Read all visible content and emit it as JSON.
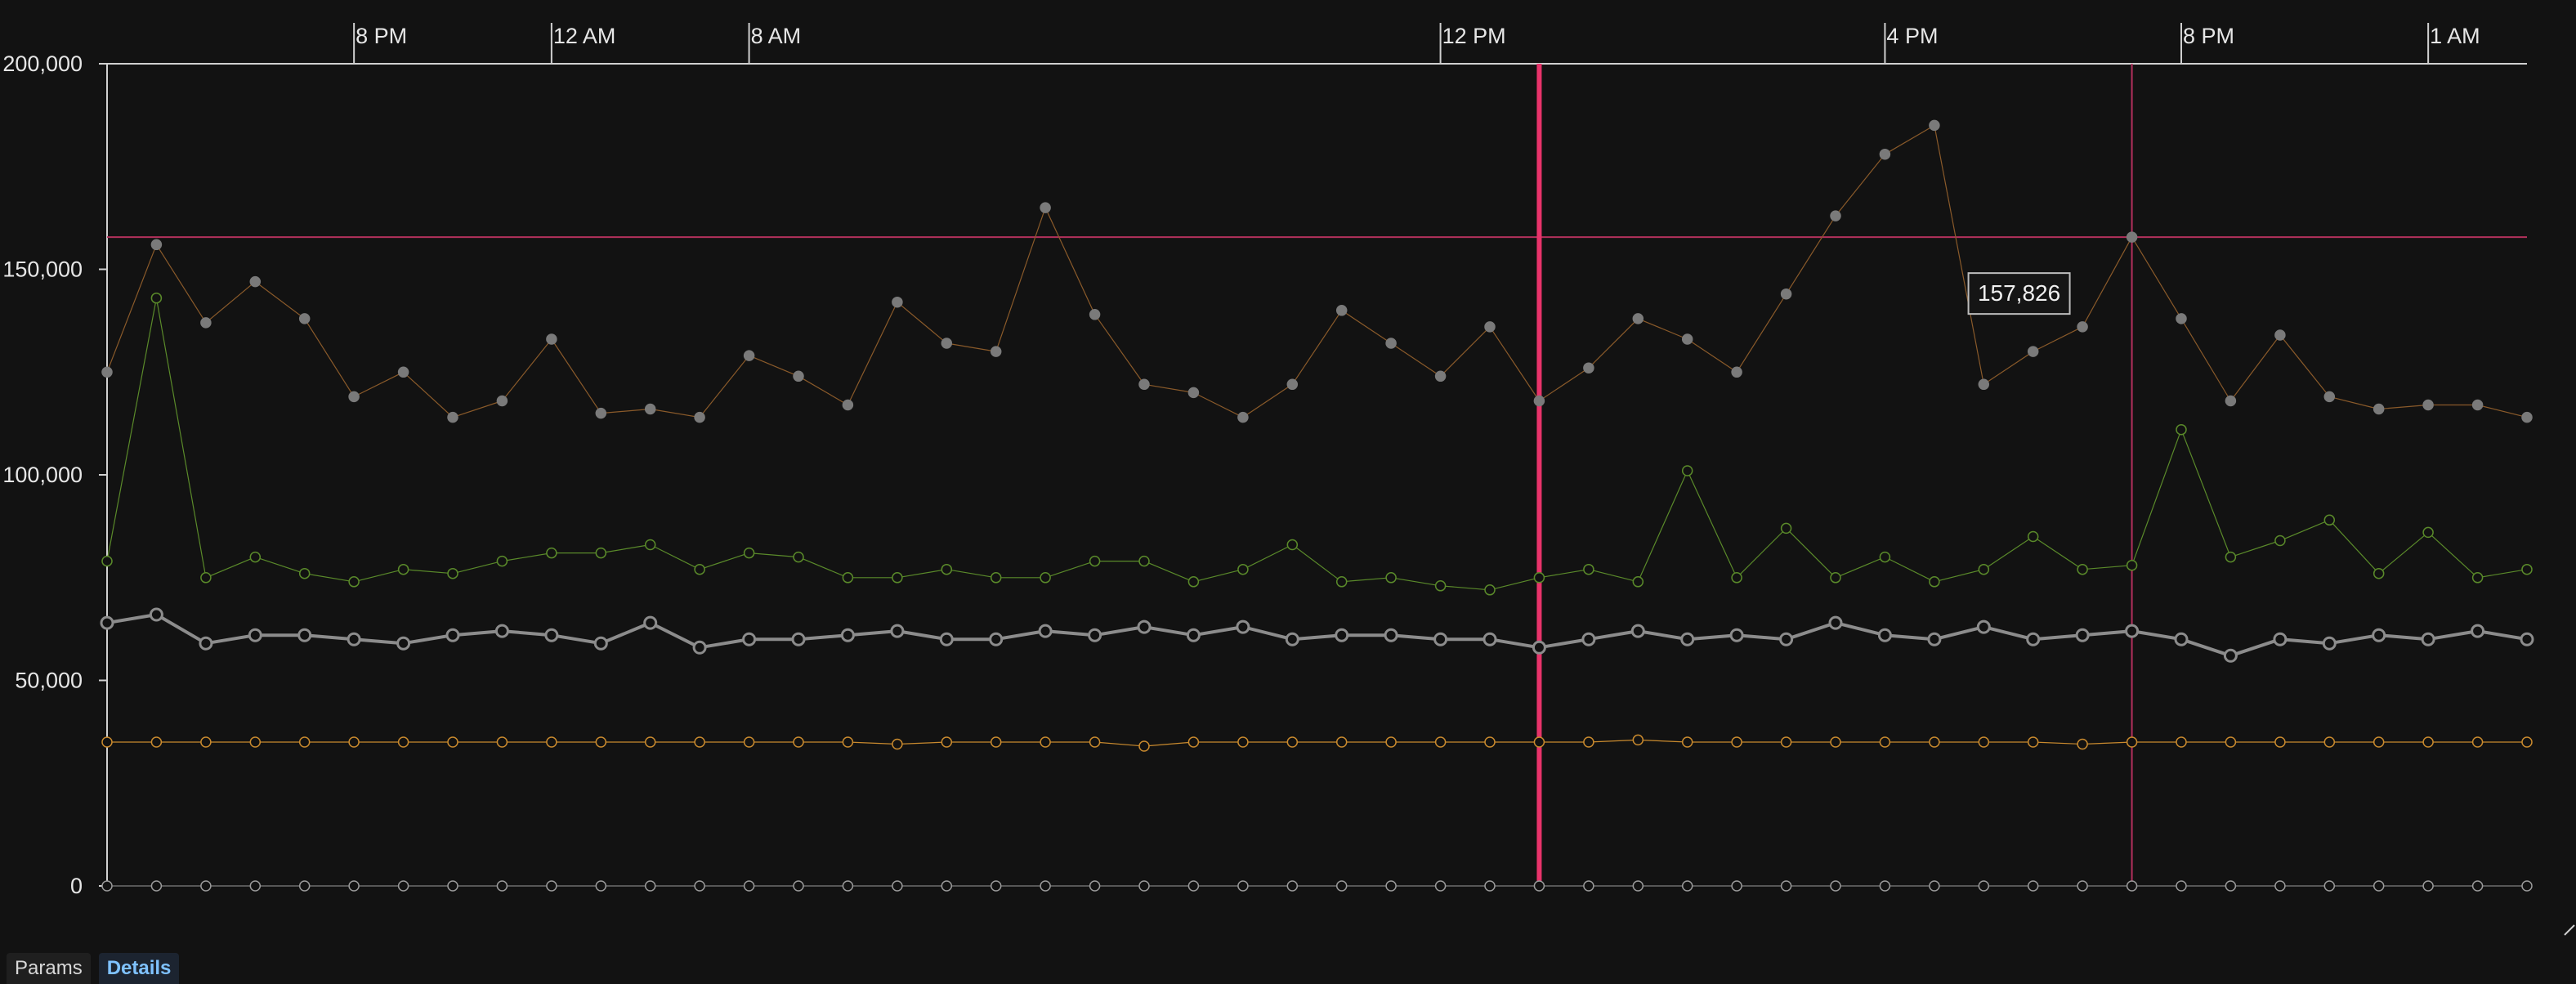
{
  "tabs": [
    {
      "label": "Params",
      "active": false
    },
    {
      "label": "Details",
      "active": true
    }
  ],
  "tooltip": {
    "text": "157,826"
  },
  "colors": {
    "background": "#121212",
    "axis": "#d0d0d0",
    "cursor": "#e8336a",
    "crosshair": "#b3305c",
    "series_top": "#8a5a2a",
    "series_green": "#5a8a2a",
    "series_grey": "#8c8c8c",
    "series_orange": "#c98a2e",
    "series_zero": "#9a9a9a"
  },
  "chart_data": {
    "type": "line",
    "x_tick_labels": [
      "8 PM",
      "12 AM",
      "8 AM",
      "12 PM",
      "4 PM",
      "8 PM",
      "1 AM"
    ],
    "y_tick_labels": [
      "200,000",
      "150,000",
      "100,000",
      "50,000",
      "0"
    ],
    "ylim": [
      0,
      200000
    ],
    "grid": false,
    "x_index_range": [
      0,
      49
    ],
    "x_tick_index": [
      5,
      9,
      13,
      27,
      36,
      42,
      47
    ],
    "cursor_index": 29,
    "crosshair_index": 41,
    "crosshair_value": 157826,
    "series": [
      {
        "key": "top",
        "color": "#8a5a2a",
        "dot": "#7a7a7a",
        "filled": true,
        "width": 1.2,
        "values": [
          125000,
          156000,
          137000,
          147000,
          138000,
          119000,
          125000,
          114000,
          118000,
          133000,
          115000,
          116000,
          114000,
          129000,
          124000,
          117000,
          142000,
          132000,
          130000,
          165000,
          139000,
          122000,
          120000,
          114000,
          122000,
          140000,
          132000,
          124000,
          136000,
          118000,
          126000,
          138000,
          133000,
          125000,
          144000,
          163000,
          178000,
          185000,
          122000,
          130000,
          136000,
          157826,
          138000,
          118000,
          134000,
          119000,
          116000,
          117000,
          117000,
          114000
        ]
      },
      {
        "key": "green",
        "color": "#5a8a2a",
        "dot": "#5a8a2a",
        "filled": false,
        "width": 1.2,
        "values": [
          79000,
          143000,
          75000,
          80000,
          76000,
          74000,
          77000,
          76000,
          79000,
          81000,
          81000,
          83000,
          77000,
          81000,
          80000,
          75000,
          75000,
          77000,
          75000,
          75000,
          79000,
          79000,
          74000,
          77000,
          83000,
          74000,
          75000,
          73000,
          72000,
          75000,
          77000,
          74000,
          101000,
          75000,
          87000,
          75000,
          80000,
          74000,
          77000,
          85000,
          77000,
          78000,
          111000,
          80000,
          84000,
          89000,
          76000,
          86000,
          75000,
          77000
        ]
      },
      {
        "key": "grey",
        "color": "#8c8c8c",
        "dot": "#8c8c8c",
        "filled": false,
        "width": 4,
        "values": [
          64000,
          66000,
          59000,
          61000,
          61000,
          60000,
          59000,
          61000,
          62000,
          61000,
          59000,
          64000,
          58000,
          60000,
          60000,
          61000,
          62000,
          60000,
          60000,
          62000,
          61000,
          63000,
          61000,
          63000,
          60000,
          61000,
          61000,
          60000,
          60000,
          58000,
          60000,
          62000,
          60000,
          61000,
          60000,
          64000,
          61000,
          60000,
          63000,
          60000,
          61000,
          62000,
          60000,
          56000,
          60000,
          59000,
          61000,
          60000,
          62000,
          60000
        ]
      },
      {
        "key": "orange",
        "color": "#c98a2e",
        "dot": "#c98a2e",
        "filled": false,
        "width": 1.2,
        "values": [
          35000,
          35000,
          35000,
          35000,
          35000,
          35000,
          35000,
          35000,
          35000,
          35000,
          35000,
          35000,
          35000,
          35000,
          35000,
          35000,
          34500,
          35000,
          35000,
          35000,
          35000,
          34000,
          35000,
          35000,
          35000,
          35000,
          35000,
          35000,
          35000,
          35000,
          35000,
          35500,
          35000,
          35000,
          35000,
          35000,
          35000,
          35000,
          35000,
          35000,
          34500,
          35000,
          35000,
          35000,
          35000,
          35000,
          35000,
          35000,
          35000,
          35000
        ]
      },
      {
        "key": "zero",
        "color": "#9a9a9a",
        "dot": "#9a9a9a",
        "filled": false,
        "width": 1,
        "values": [
          0,
          0,
          0,
          0,
          0,
          0,
          0,
          0,
          0,
          0,
          0,
          0,
          0,
          0,
          0,
          0,
          0,
          0,
          0,
          0,
          0,
          0,
          0,
          0,
          0,
          0,
          0,
          0,
          0,
          0,
          0,
          0,
          0,
          0,
          0,
          0,
          0,
          0,
          0,
          0,
          0,
          0,
          0,
          0,
          0,
          0,
          0,
          0,
          0,
          0
        ]
      }
    ]
  }
}
